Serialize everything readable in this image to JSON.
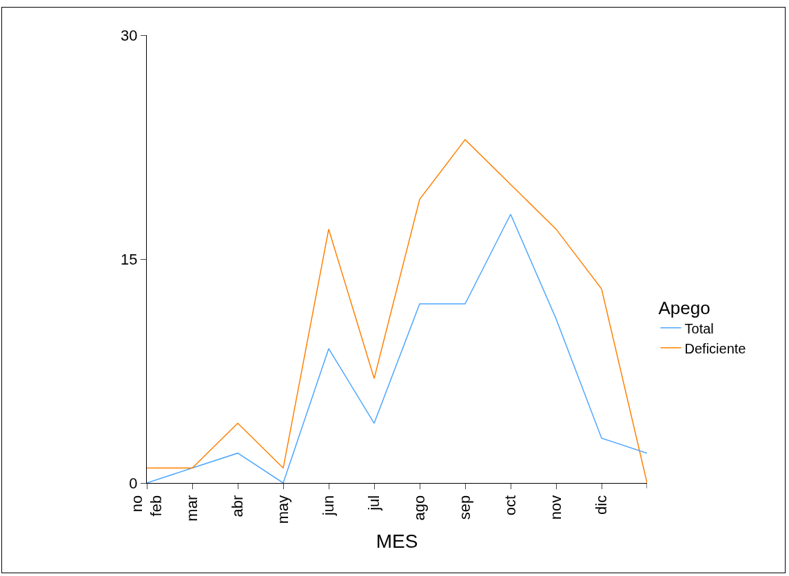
{
  "chart_data": {
    "type": "line",
    "xlabel": "MES",
    "legend_title": "Apego",
    "categories": [
      "no\nfeb",
      "mar",
      "abr",
      "may",
      "jun",
      "jul",
      "ago",
      "sep",
      "oct",
      "nov",
      "dic",
      null
    ],
    "series": [
      {
        "name": "Total",
        "color": "#4da6ff",
        "values": [
          0,
          1,
          2,
          0,
          9,
          4,
          12,
          12,
          18,
          11,
          3,
          2
        ]
      },
      {
        "name": "Deficiente",
        "color": "#ff8000",
        "values": [
          1,
          1,
          4,
          1,
          17,
          7,
          19,
          23,
          20,
          17,
          13,
          0
        ]
      }
    ],
    "ylim": [
      0,
      30
    ],
    "yticks": [
      0,
      15,
      30
    ],
    "grid": false,
    "legend": "right",
    "marker": "none",
    "line_style": "solid"
  }
}
